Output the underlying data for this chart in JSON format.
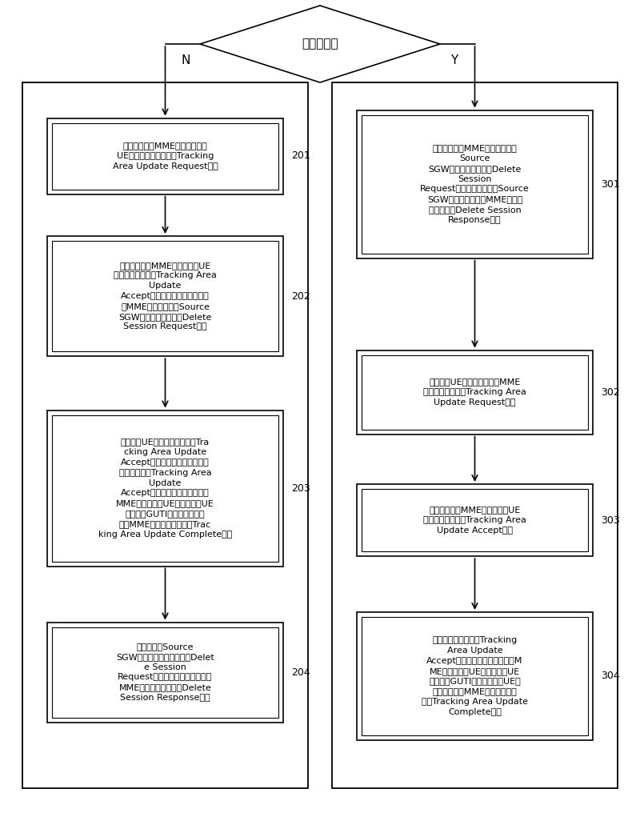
{
  "bg_color": "#ffffff",
  "diamond_text": "定时器溢出",
  "n_label": "N",
  "y_label": "Y",
  "left_boxes": [
    {
      "id": "201",
      "text": "移动管理实体MME接收用户设备\nUE发送的位置更新请求Tracking\nArea Update Request消息"
    },
    {
      "id": "202",
      "text": "移动管理实体MME向用户设备UE\n回复位置更新接受Tracking Area\nUpdate\nAccept消息，以及，移动管理实\n体MME向源服务网关Source\nSGW发送删除会话请求Delete\nSession Request消息"
    },
    {
      "id": "203",
      "text": "用户设备UE接收位置更新接受Tra\ncking Area Update\nAccept消息后，若所述接收到的\n位置更新接受Tracking Area\nUpdate\nAccept消息中包括移动管理实体\nMME向用户设备UE重新分配的UE\n临时标识GUTI，则向移动管理\n实体MME回复位置更新完成Trac\nking Area Update Complete消息"
    },
    {
      "id": "204",
      "text": "源服务网关Source\nSGW收到所述删除会话请求Delet\ne Session\nRequest消息后，向移动管理实体\nMME回复删除会话接受Delete\nSession Response消息"
    }
  ],
  "right_boxes": [
    {
      "id": "301",
      "text": "移动管理实体MME向源服务网关\nSource\nSGW发送删除会话请求Delete\nSession\nRequest消息，源服务网关Source\nSGW向移动管理实体MME回复删\n除会话响应Delete Session\nResponse消息"
    },
    {
      "id": "302",
      "text": "用户设备UE向移动管理实体MME\n发送位置更新请求Tracking Area\nUpdate Request消息"
    },
    {
      "id": "303",
      "text": "移动管理实体MME向用户设备UE\n回复位置更新接受Tracking Area\nUpdate Accept消息"
    },
    {
      "id": "304",
      "text": "若所述位置更新接受Tracking\nArea Update\nAccept消息中包括移动管理实体M\nME向用户设备UE重新分配的UE\n临时标识GUTI，则用户设备UE向\n移动管理实体MME回复位置更新\n完成Tracking Area Update\nComplete消息"
    }
  ]
}
